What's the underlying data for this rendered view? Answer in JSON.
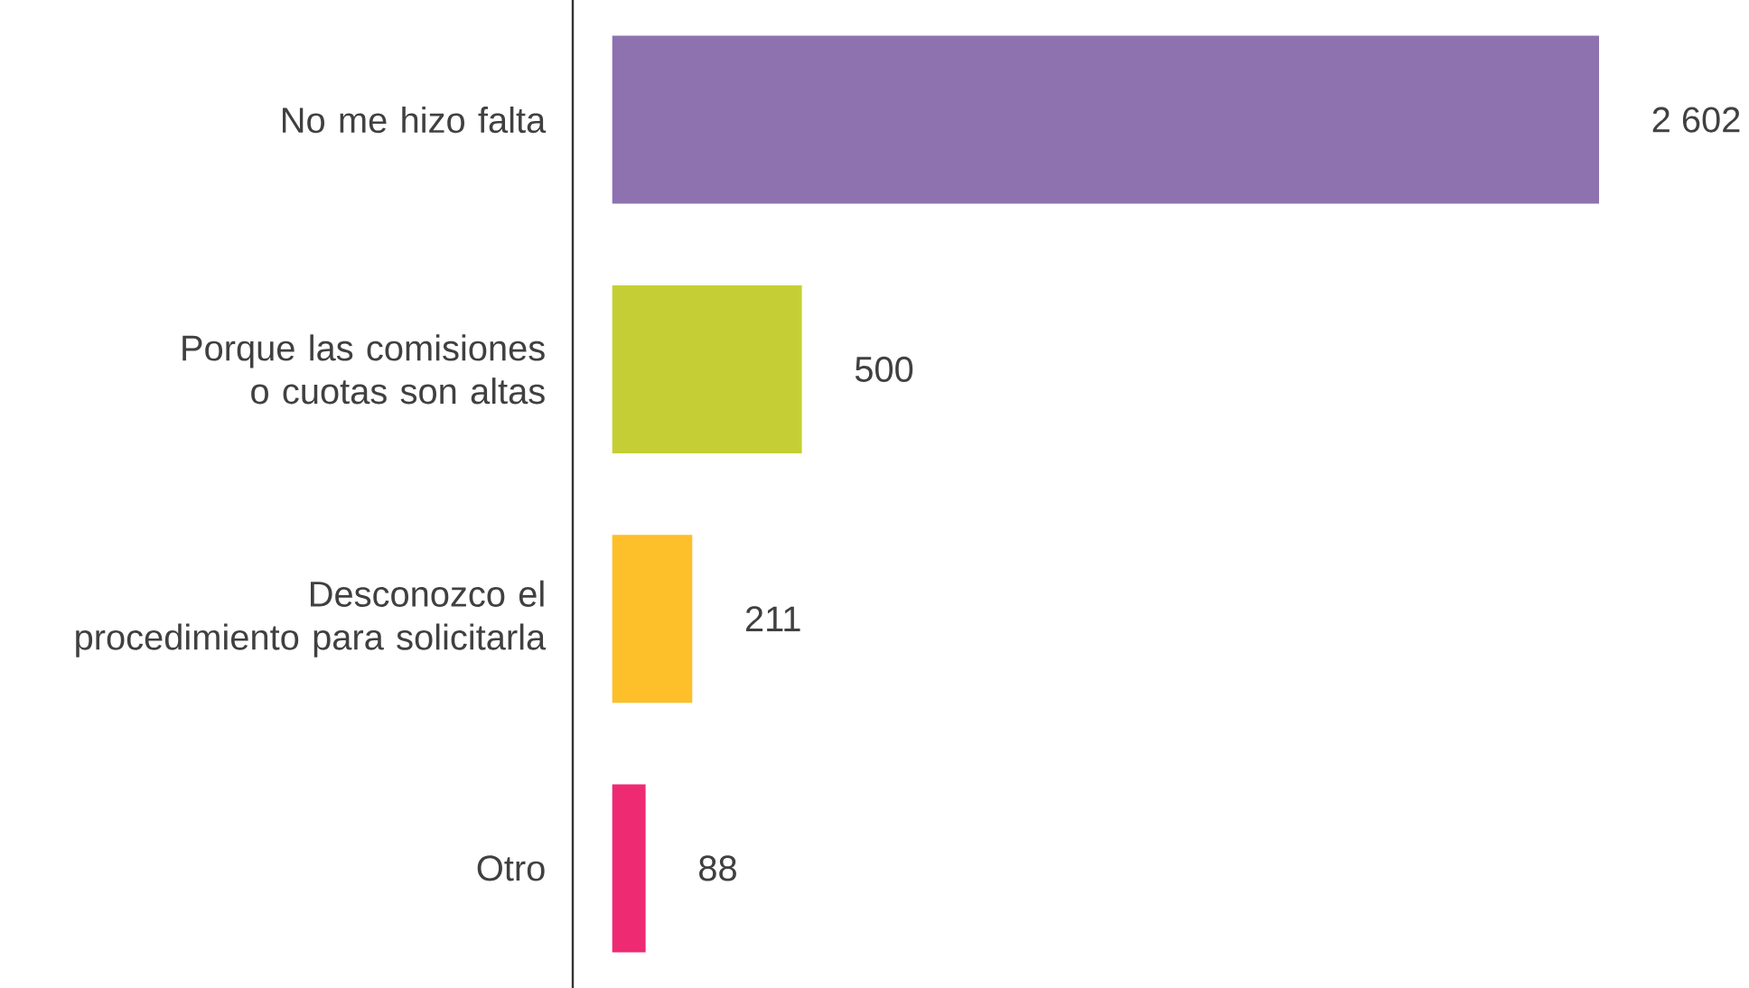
{
  "chart_data": {
    "type": "bar",
    "orientation": "horizontal",
    "categories": [
      "No me hizo falta",
      "Porque las comisiones o cuotas son altas",
      "Desconozco el procedimiento para solicitarla",
      "Otro"
    ],
    "values": [
      2602,
      500,
      211,
      88
    ],
    "colors": [
      "#8e72b0",
      "#c5cf35",
      "#fdbf2a",
      "#ee2a72"
    ],
    "value_labels": [
      "2 602",
      "500",
      "211",
      "88"
    ]
  }
}
